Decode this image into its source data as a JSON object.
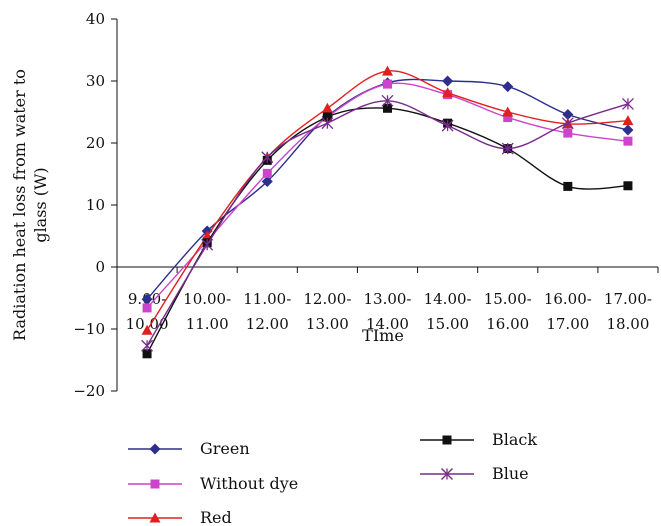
{
  "chart_data": {
    "type": "line",
    "title": "",
    "xlabel": "TIme",
    "ylabel": "Radiation heat loss from water to glass (W)",
    "ylabel_lines": [
      "Radiation heat loss from water to",
      "glass (W)"
    ],
    "ylim": [
      -20,
      40
    ],
    "yticks": [
      -20,
      -10,
      0,
      10,
      20,
      30,
      40
    ],
    "grid": false,
    "legend_position": "bottom",
    "categories": [
      {
        "top": "9.00-",
        "bottom": "10.00"
      },
      {
        "top": "10.00-",
        "bottom": "11.00"
      },
      {
        "top": "11.00-",
        "bottom": "12.00"
      },
      {
        "top": "12.00-",
        "bottom": "13.00"
      },
      {
        "top": "13.00-",
        "bottom": "14.00"
      },
      {
        "top": "14.00-",
        "bottom": "15.00"
      },
      {
        "top": "15.00-",
        "bottom": "16.00"
      },
      {
        "top": "16.00-",
        "bottom": "17.00"
      },
      {
        "top": "17.00-",
        "bottom": "18.00"
      }
    ],
    "series": [
      {
        "name": "Green",
        "color": "#2e2e8c",
        "marker": "diamond",
        "values": [
          -5.2,
          5.8,
          13.8,
          24.3,
          29.7,
          30.0,
          29.1,
          24.6,
          22.1
        ]
      },
      {
        "name": "Without dye",
        "color": "#cc44cc",
        "marker": "square",
        "values": [
          -6.6,
          4.2,
          15.1,
          24.2,
          29.5,
          27.8,
          24.1,
          21.6,
          20.3
        ]
      },
      {
        "name": "Red",
        "color": "#e02020",
        "marker": "triangle",
        "values": [
          -10.2,
          5.0,
          17.7,
          25.6,
          31.6,
          28.1,
          25.0,
          23.1,
          23.6
        ]
      },
      {
        "name": "Black",
        "color": "#111111",
        "marker": "square",
        "values": [
          -14.0,
          3.9,
          17.2,
          24.2,
          25.6,
          23.2,
          19.1,
          13.0,
          13.1
        ]
      },
      {
        "name": "Blue",
        "color": "#7a2a8c",
        "marker": "asterisk",
        "values": [
          -12.7,
          3.6,
          17.7,
          23.2,
          26.8,
          22.8,
          19.1,
          23.2,
          26.3
        ]
      }
    ]
  }
}
